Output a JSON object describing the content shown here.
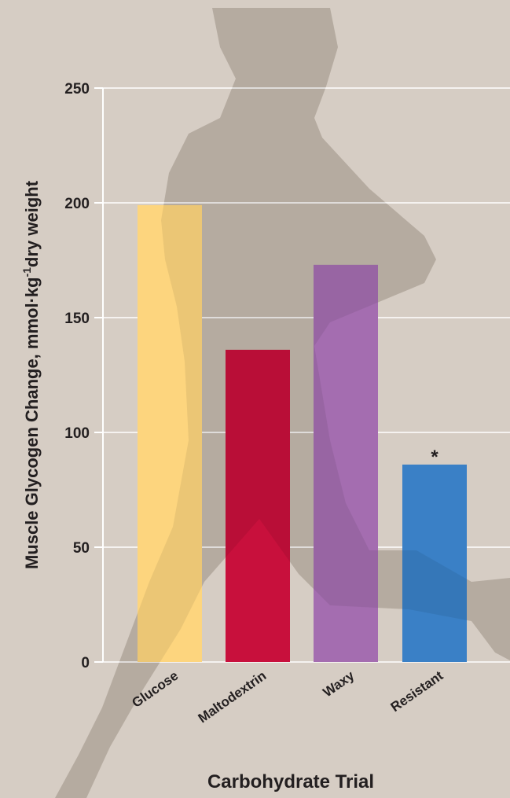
{
  "chart_data": {
    "type": "bar",
    "y_label": [
      "Muscle Glycogen Change, mmol·kg",
      "-1",
      "dry weight"
    ],
    "x_label": "Carbohydrate Trial",
    "categories": [
      "Glucose",
      "Maltodextrin",
      "Waxy",
      "Resistant"
    ],
    "values": [
      199,
      136,
      173,
      86
    ],
    "colors": [
      "#fdd57e",
      "#c8103c",
      "#a46db0",
      "#3a80c6"
    ],
    "ylim": [
      0,
      250
    ],
    "yticks": [
      0,
      50,
      100,
      150,
      200,
      250
    ],
    "grid": true,
    "annotations": [
      {
        "text": "*",
        "x": "Resistant"
      }
    ]
  }
}
